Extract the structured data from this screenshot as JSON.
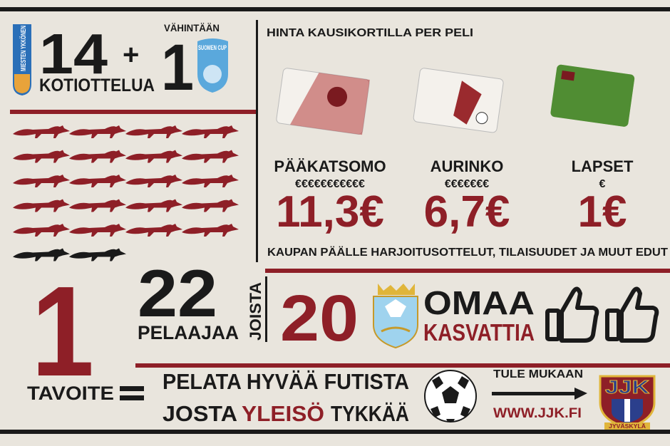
{
  "header": {
    "home_games": "14",
    "plus": "+",
    "cup_games": "1",
    "home_games_label": "KOTIOTTELUA",
    "minimum_label": "VÄHINTÄÄN",
    "league_logo": "MIESTEN YKKÖNEN",
    "cup_logo": "SUOMEN CUP"
  },
  "prices": {
    "title": "HINTA KAUSIKORTILLA PER PELI",
    "tickets": [
      {
        "name": "PÄÄKATSOMO",
        "symbols": "€€€€€€€€€€€",
        "price": "11,3€"
      },
      {
        "name": "AURINKO",
        "symbols": "€€€€€€€",
        "price": "6,7€"
      },
      {
        "name": "LAPSET",
        "symbols": "€",
        "price": "1€"
      }
    ],
    "note": "KAUPAN PÄÄLLE HARJOITUSOTTELUT, TILAISUUDET JA MUUT EDUT"
  },
  "squad": {
    "players": 22,
    "players_label": "PELAAJAA",
    "of_which": "JOISTA",
    "own": 20,
    "own_label_1": "OMAA",
    "own_label_2": "KASVATTIA"
  },
  "goal": {
    "count": "1",
    "label": "TAVOITE",
    "line_1": "PELATA HYVÄÄ FUTISTA",
    "line_2_start": "JOSTA",
    "line_2_highlight": "YLEISÖ",
    "line_2_end": "TYKKÄÄ"
  },
  "join": {
    "text": "TULE MUKAAN",
    "url": "WWW.JJK.FI",
    "logo": "JJK",
    "logo_city": "JYVÄSKYLÄ"
  }
}
